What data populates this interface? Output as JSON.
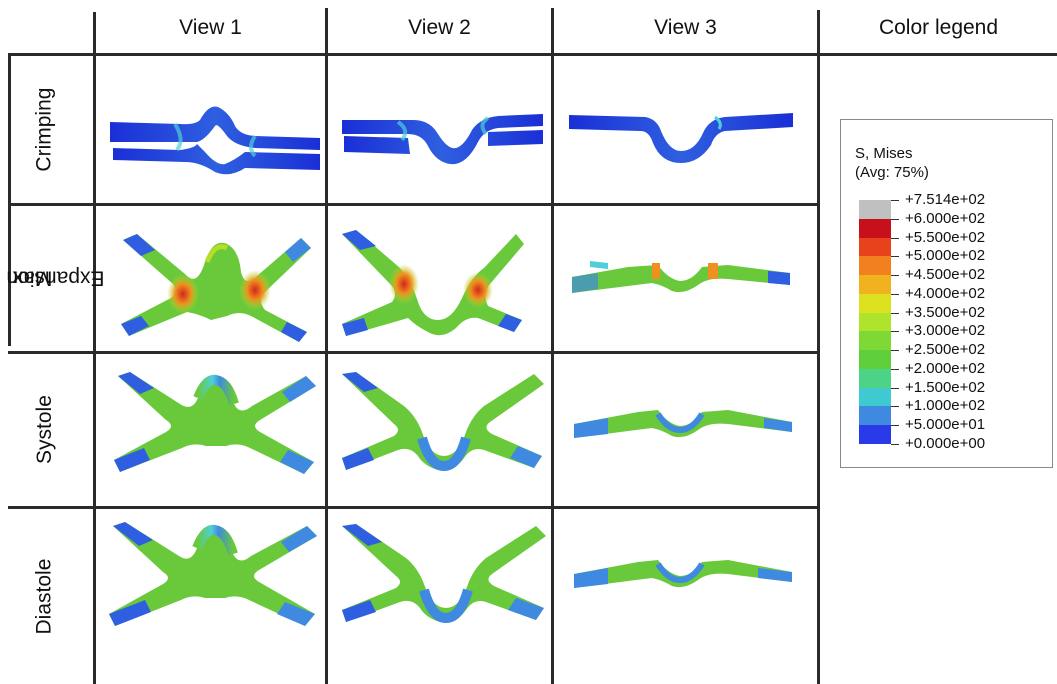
{
  "headers": {
    "view1": "View 1",
    "view2": "View 2",
    "view3": "View 3",
    "legend": "Color legend"
  },
  "rows": {
    "crimping": "Crimping",
    "max_expansion_1": "Max",
    "max_expansion_2": "Expansion",
    "systole": "Systole",
    "diastole": "Diastole"
  },
  "legend": {
    "title": "S, Mises",
    "subtitle": "(Avg: 75%)",
    "labels": [
      "+7.514e+02",
      "+6.000e+02",
      "+5.500e+02",
      "+5.000e+02",
      "+4.500e+02",
      "+4.000e+02",
      "+3.500e+02",
      "+3.000e+02",
      "+2.500e+02",
      "+2.000e+02",
      "+1.500e+02",
      "+1.000e+02",
      "+5.000e+01",
      "+0.000e+00"
    ],
    "colors": [
      "#c0c0c0",
      "#c8101a",
      "#e7421c",
      "#f3801e",
      "#f0b31f",
      "#dce21f",
      "#aee42b",
      "#7ed934",
      "#5fd03b",
      "#4cd386",
      "#3fc9d0",
      "#3f8ae0",
      "#2a3ae8"
    ]
  },
  "stress_colors": {
    "low": "#1a2fd6",
    "low_mid": "#3f8ae0",
    "cyan": "#4fcfd8",
    "green": "#69c93a",
    "yellow_green": "#b6dd2a",
    "orange": "#f0901e",
    "red": "#d0291b"
  }
}
